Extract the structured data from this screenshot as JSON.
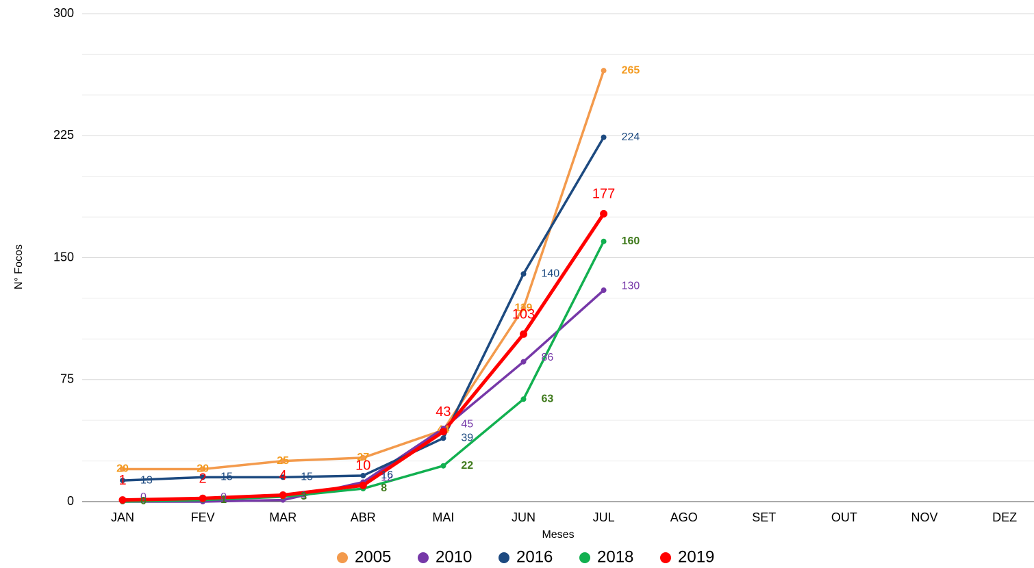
{
  "chart_data": {
    "type": "line",
    "x_label": "Meses",
    "y_label": "N° Focos",
    "categories": [
      "JAN",
      "FEV",
      "MAR",
      "ABR",
      "MAI",
      "JUN",
      "JUL",
      "AGO",
      "SET",
      "OUT",
      "NOV",
      "DEZ"
    ],
    "series": [
      {
        "name": "2005",
        "color": "#f39a4c",
        "label_color": "#f39a1f",
        "values": [
          20,
          20,
          25,
          27,
          44,
          119,
          265,
          null,
          null,
          null,
          null,
          null
        ]
      },
      {
        "name": "2010",
        "color": "#7638a8",
        "label_color": "#7638a8",
        "values": [
          0,
          0,
          1,
          12,
          45,
          86,
          130,
          null,
          null,
          null,
          null,
          null
        ]
      },
      {
        "name": "2016",
        "color": "#1d4a80",
        "label_color": "#1d4a80",
        "values": [
          13,
          15,
          15,
          16,
          39,
          140,
          224,
          null,
          null,
          null,
          null,
          null
        ]
      },
      {
        "name": "2018",
        "color": "#12b050",
        "label_color": "#3f7a1c",
        "values": [
          0,
          1,
          3,
          8,
          22,
          63,
          160,
          null,
          null,
          null,
          null,
          null
        ]
      },
      {
        "name": "2019",
        "color": "#ff0000",
        "label_color": "#ff0000",
        "values": [
          1,
          2,
          4,
          10,
          43,
          103,
          177,
          null,
          null,
          null,
          null,
          null
        ]
      }
    ],
    "ylim": [
      0,
      300
    ],
    "yticks": [
      0,
      75,
      150,
      225,
      300
    ],
    "minor_yticks": [
      25,
      50,
      100,
      125,
      175,
      200,
      250,
      275
    ],
    "grid": true,
    "legend": "bottom"
  }
}
